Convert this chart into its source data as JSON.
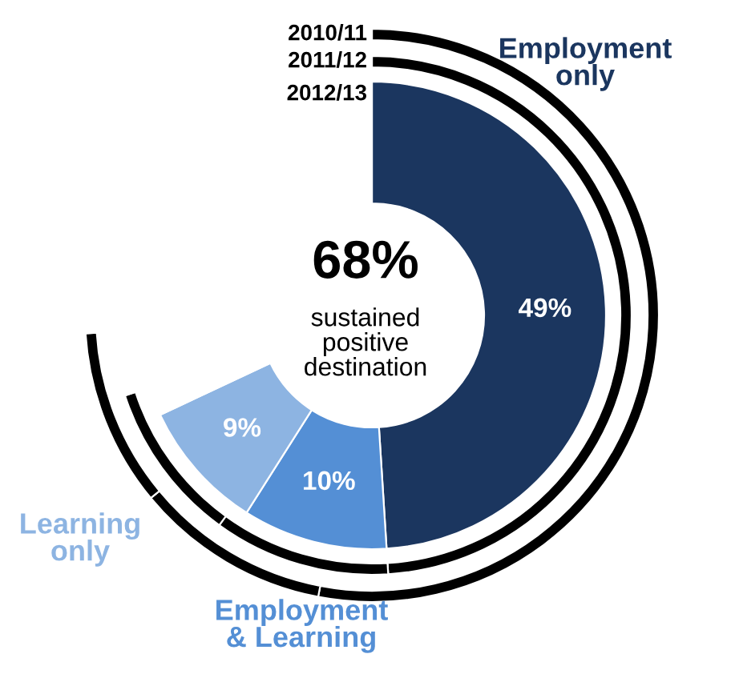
{
  "chart_data": {
    "type": "donut",
    "categories": [
      "Employment\nonly",
      "Employment\n& Learning",
      "Learning\nonly",
      null
    ],
    "series": [
      {
        "name": "2012/13",
        "colors": [
          "#1b365f",
          "#548fd5",
          "#8db4e2",
          "#ffffff"
        ],
        "values": [
          49,
          10,
          9,
          32
        ],
        "value_labels": [
          "49%",
          "10%",
          "9%",
          null
        ]
      },
      {
        "name": "2011/12",
        "colors": [
          "#000000",
          "#000000",
          "#000000",
          "#ffffff"
        ],
        "values": [
          49,
          11,
          10,
          30
        ]
      },
      {
        "name": "2010/11",
        "colors": [
          "#000000",
          "#000000",
          "#000000",
          "#ffffff"
        ],
        "values": [
          53,
          11,
          10,
          26
        ]
      }
    ],
    "annotations": [
      "68%",
      "sustained\npositive\ndestination"
    ]
  }
}
